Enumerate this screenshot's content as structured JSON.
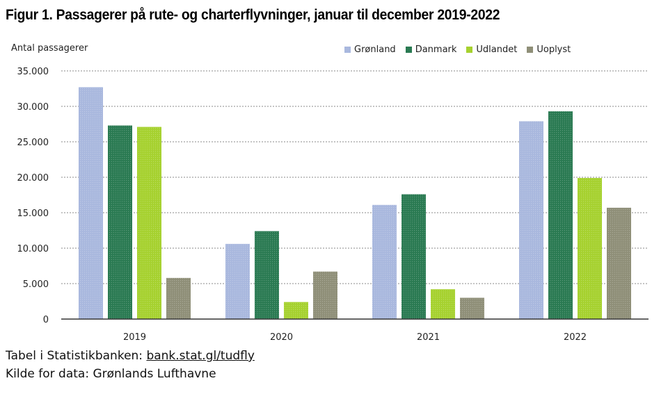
{
  "title": "Figur 1. Passagerer på rute- og charterflyvninger, januar til december 2019-2022",
  "footer": {
    "source_prefix": "Tabel i Statistikbanken: ",
    "source_link": "bank.stat.gl/tudfly",
    "data_source": "Kilde for data: Grønlands Lufthavne"
  },
  "chart_data": {
    "type": "bar",
    "ylabel": "Antal passagerer",
    "xlabel": "",
    "categories": [
      "2019",
      "2020",
      "2021",
      "2022"
    ],
    "ylim": [
      0,
      35000
    ],
    "yticks": [
      0,
      5000,
      10000,
      15000,
      20000,
      25000,
      30000,
      35000
    ],
    "ytick_labels": [
      "0",
      "5.000",
      "10.000",
      "15.000",
      "20.000",
      "25.000",
      "30.000",
      "35.000"
    ],
    "grid": true,
    "legend_position": "top-right",
    "series": [
      {
        "name": "Grønland",
        "color": "#a9b8de",
        "values": [
          32700,
          10600,
          16100,
          27900
        ]
      },
      {
        "name": "Danmark",
        "color": "#2a7a52",
        "values": [
          27300,
          12400,
          17600,
          29300
        ]
      },
      {
        "name": "Udlandet",
        "color": "#a6d12f",
        "values": [
          27100,
          2400,
          4200,
          19900
        ]
      },
      {
        "name": "Uoplyst",
        "color": "#8f8f78",
        "values": [
          5800,
          6700,
          3000,
          15700
        ]
      }
    ]
  }
}
